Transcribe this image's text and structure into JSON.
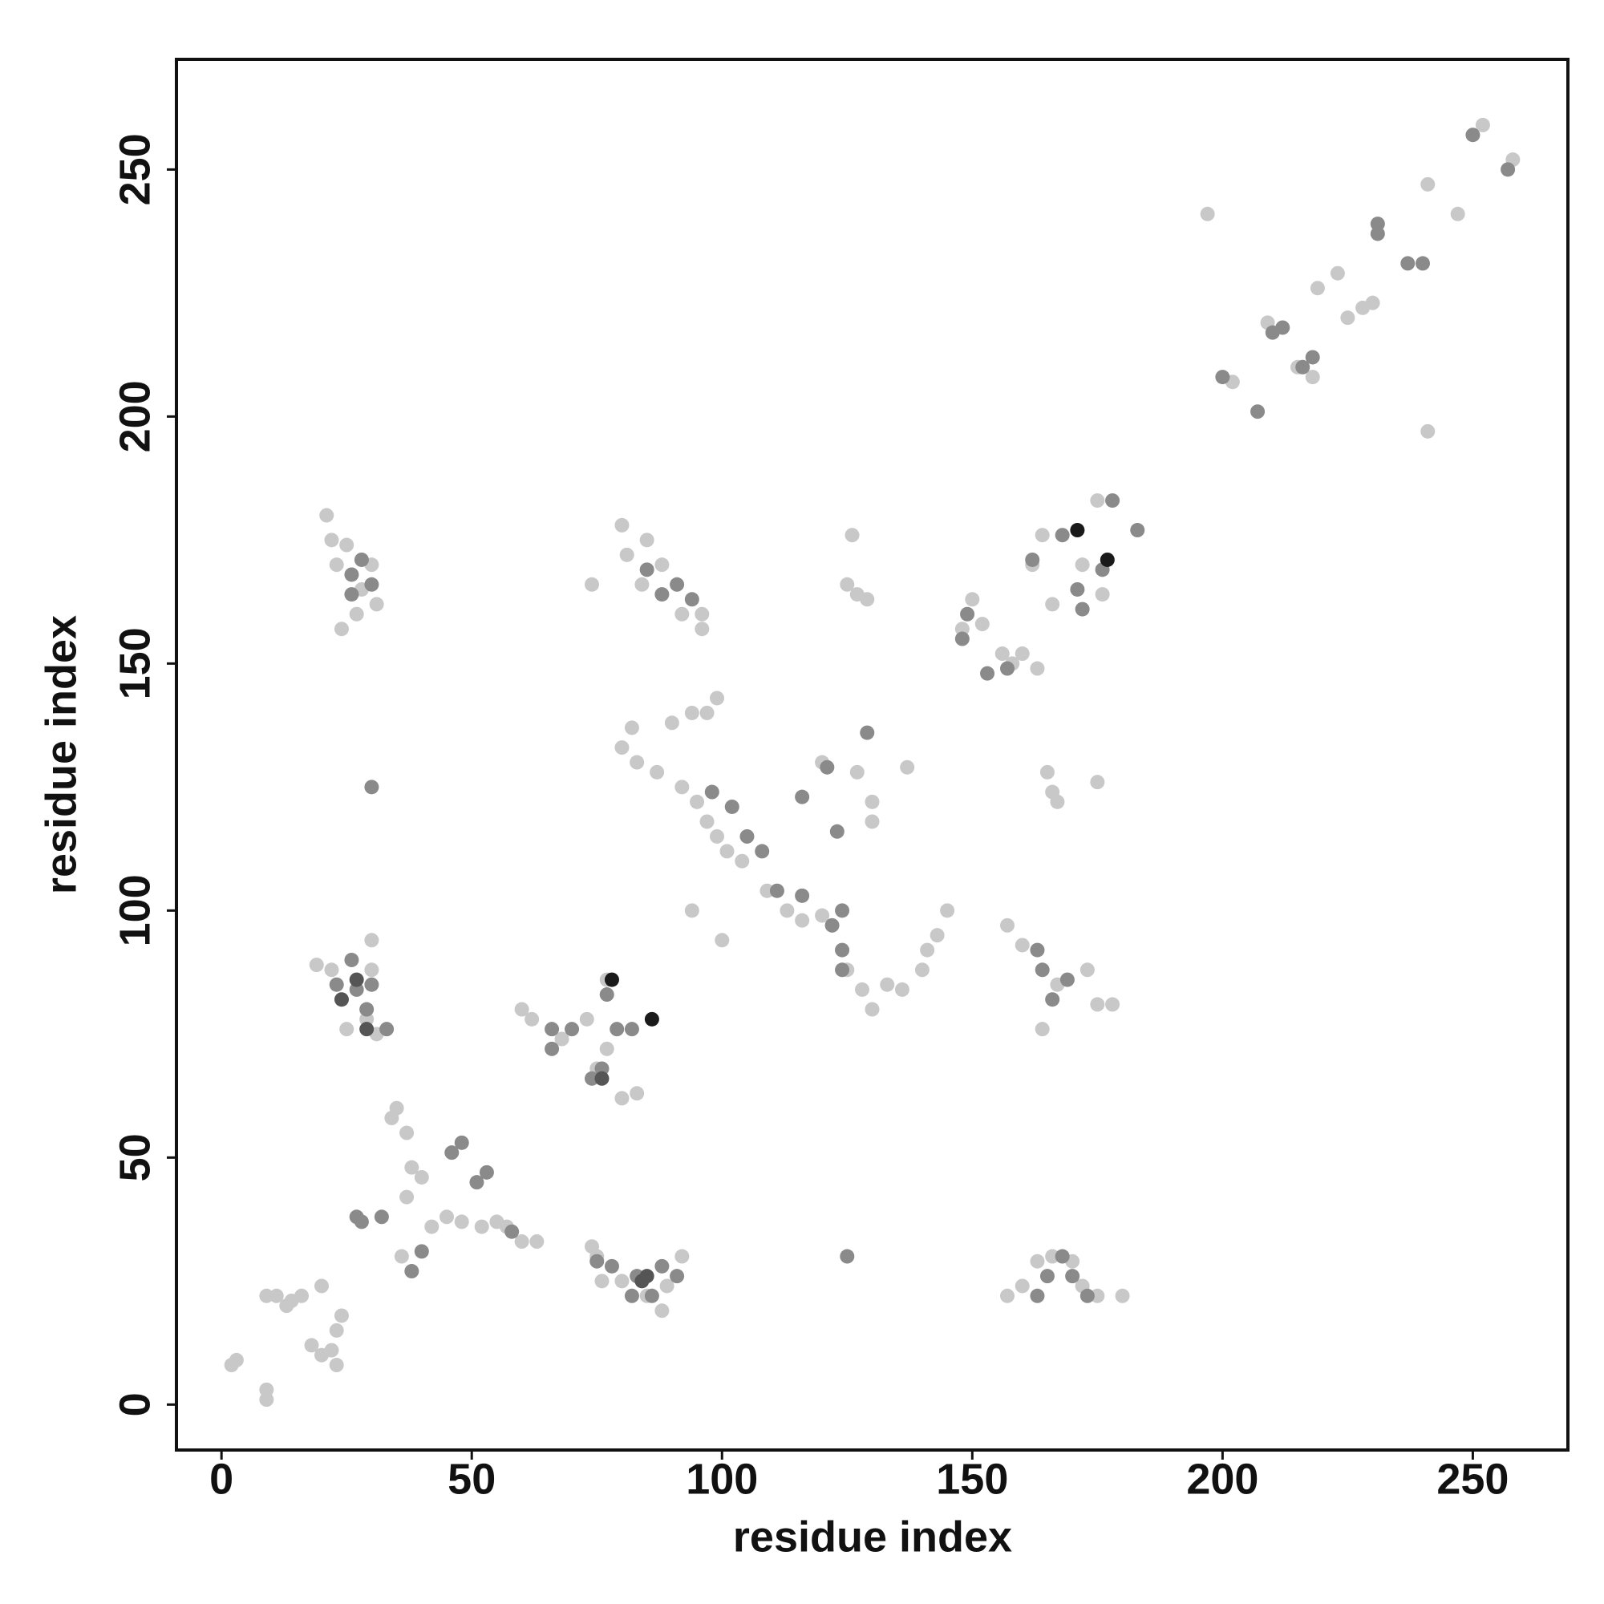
{
  "chart_data": {
    "type": "scatter",
    "x_label": "residue index",
    "y_label": "residue index",
    "xlim": [
      -9,
      269
    ],
    "ylim": [
      -9.2,
      272.3
    ],
    "xticks": [
      0,
      50,
      100,
      150,
      200,
      250
    ],
    "yticks": [
      0,
      50,
      100,
      150,
      200,
      250
    ],
    "series": [
      {
        "color": "#c8c8c8",
        "x": [
          2,
          3,
          9,
          9,
          9,
          11,
          13,
          14,
          16,
          20,
          18,
          20,
          22,
          23,
          24,
          23,
          35,
          34,
          37,
          38,
          40,
          42,
          45,
          48,
          52,
          55,
          57,
          60,
          63,
          36,
          37,
          74,
          75,
          76,
          80,
          85,
          88,
          89,
          92,
          157,
          160,
          163,
          166,
          170,
          172,
          175,
          180,
          19,
          22,
          25,
          29,
          31,
          30,
          30,
          60,
          62,
          68,
          73,
          75,
          77,
          80,
          83,
          77,
          21,
          22,
          23,
          25,
          28,
          30,
          31,
          24,
          27,
          80,
          81,
          84,
          85,
          88,
          74,
          92,
          96,
          96,
          80,
          83,
          82,
          87,
          90,
          92,
          94,
          97,
          99,
          95,
          97,
          99,
          101,
          104,
          109,
          113,
          116,
          120,
          94,
          100,
          125,
          128,
          130,
          133,
          136,
          140,
          141,
          143,
          145,
          125,
          127,
          129,
          126,
          120,
          127,
          130,
          130,
          137,
          157,
          160,
          165,
          166,
          167,
          175,
          164,
          167,
          173,
          175,
          178,
          148,
          150,
          152,
          156,
          158,
          160,
          163,
          164,
          162,
          166,
          172,
          175,
          176,
          197,
          202,
          209,
          215,
          218,
          219,
          223,
          225,
          228,
          230,
          241,
          241,
          247,
          252,
          258
        ],
        "values": [
          8,
          9,
          1,
          3,
          22,
          22,
          20,
          21,
          22,
          24,
          12,
          10,
          11,
          15,
          18,
          8,
          60,
          58,
          55,
          48,
          46,
          36,
          38,
          37,
          36,
          37,
          36,
          33,
          33,
          30,
          42,
          32,
          30,
          25,
          25,
          22,
          19,
          24,
          30,
          22,
          24,
          29,
          30,
          29,
          24,
          22,
          22,
          89,
          88,
          76,
          78,
          75,
          94,
          88,
          80,
          78,
          74,
          78,
          68,
          72,
          62,
          63,
          86,
          180,
          175,
          170,
          174,
          165,
          170,
          162,
          157,
          160,
          178,
          172,
          166,
          175,
          170,
          166,
          160,
          160,
          157,
          133,
          130,
          137,
          128,
          138,
          125,
          140,
          140,
          143,
          122,
          118,
          115,
          112,
          110,
          104,
          100,
          98,
          99,
          100,
          94,
          88,
          84,
          80,
          85,
          84,
          88,
          92,
          95,
          100,
          166,
          164,
          163,
          176,
          130,
          128,
          122,
          118,
          129,
          97,
          93,
          128,
          124,
          122,
          126,
          76,
          85,
          88,
          81,
          81,
          157,
          163,
          158,
          152,
          150,
          152,
          149,
          176,
          170,
          162,
          170,
          183,
          164,
          241,
          207,
          219,
          210,
          208,
          226,
          229,
          220,
          222,
          223,
          197,
          247,
          241,
          259,
          252
        ]
      },
      {
        "color": "#8a8a8a",
        "x": [
          26,
          27,
          29,
          30,
          33,
          23,
          27,
          28,
          32,
          40,
          38,
          46,
          48,
          51,
          53,
          58,
          66,
          66,
          70,
          74,
          76,
          79,
          82,
          77,
          75,
          78,
          82,
          83,
          86,
          88,
          91,
          26,
          26,
          28,
          30,
          85,
          88,
          91,
          94,
          98,
          102,
          105,
          108,
          111,
          116,
          122,
          124,
          124,
          124,
          116,
          121,
          123,
          129,
          125,
          30,
          148,
          149,
          153,
          157,
          162,
          168,
          171,
          172,
          176,
          178,
          183,
          163,
          164,
          166,
          169,
          163,
          165,
          168,
          170,
          173,
          200,
          207,
          210,
          212,
          216,
          218,
          231,
          231,
          237,
          240,
          250,
          257
        ],
        "values": [
          90,
          84,
          80,
          85,
          76,
          85,
          38,
          37,
          38,
          31,
          27,
          51,
          53,
          45,
          47,
          35,
          76,
          72,
          76,
          66,
          68,
          76,
          76,
          83,
          29,
          28,
          22,
          26,
          22,
          28,
          26,
          164,
          168,
          171,
          166,
          169,
          164,
          166,
          163,
          124,
          121,
          115,
          112,
          104,
          103,
          97,
          100,
          92,
          88,
          123,
          129,
          116,
          136,
          30,
          125,
          155,
          160,
          148,
          149,
          171,
          176,
          165,
          161,
          169,
          183,
          177,
          92,
          88,
          82,
          86,
          22,
          26,
          30,
          26,
          22,
          208,
          201,
          217,
          218,
          210,
          212,
          239,
          237,
          231,
          231,
          257,
          250
        ]
      },
      {
        "color": "#555555",
        "x": [
          24,
          27,
          29,
          76,
          84,
          85
        ],
        "values": [
          82,
          86,
          76,
          66,
          25,
          26
        ]
      },
      {
        "color": "#1a1a1a",
        "x": [
          78,
          86,
          171,
          177
        ],
        "values": [
          86,
          78,
          177,
          171
        ]
      }
    ]
  }
}
